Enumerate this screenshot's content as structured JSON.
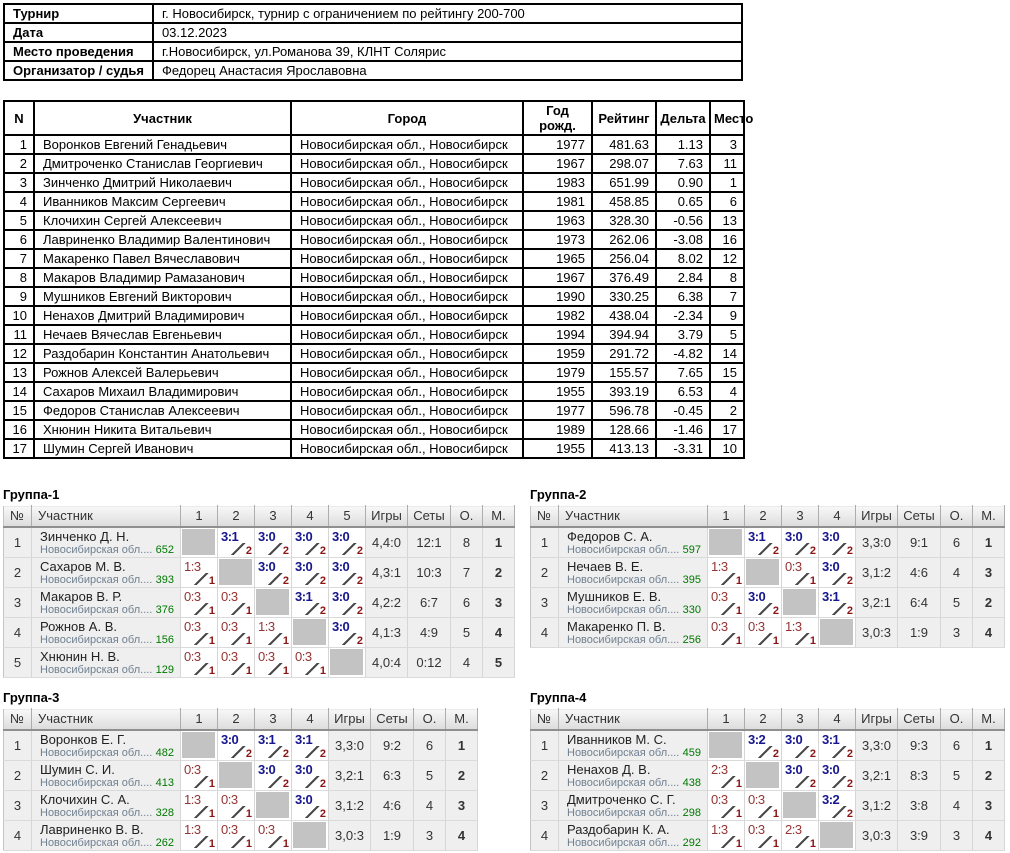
{
  "colors": {
    "win_score": "#16168e",
    "loss_score": "#943434",
    "match_points": "#8b1515",
    "rating_green": "#007800",
    "place_navy": "#22228c",
    "self_cell_gray": "#c3c3c3"
  },
  "info_table": {
    "rows": [
      {
        "label": "Турнир",
        "value": "г. Новосибирск, турнир с ограничением по рейтингу 200-700"
      },
      {
        "label": "Дата",
        "value": "03.12.2023"
      },
      {
        "label": "Место проведения",
        "value": "г.Новосибирск, ул.Романова 39, КЛНТ Солярис"
      },
      {
        "label": "Организатор / судья",
        "value": "Федорец Анастасия Ярославовна"
      }
    ]
  },
  "participants": {
    "headers": [
      "N",
      "Участник",
      "Город",
      "Год рожд.",
      "Рейтинг",
      "Дельта",
      "Место"
    ],
    "rows": [
      [
        "1",
        "Воронков Евгений Генадьевич",
        "Новосибирская обл., Новосибирск",
        "1977",
        "481.63",
        "1.13",
        "3"
      ],
      [
        "2",
        "Дмитроченко Станислав Георгиевич",
        "Новосибирская обл., Новосибирск",
        "1967",
        "298.07",
        "7.63",
        "11"
      ],
      [
        "3",
        "Зинченко Дмитрий Николаевич",
        "Новосибирская обл., Новосибирск",
        "1983",
        "651.99",
        "0.90",
        "1"
      ],
      [
        "4",
        "Иванников Максим Сергеевич",
        "Новосибирская обл., Новосибирск",
        "1981",
        "458.85",
        "0.65",
        "6"
      ],
      [
        "5",
        "Клочихин Сергей Алексеевич",
        "Новосибирская обл., Новосибирск",
        "1963",
        "328.30",
        "-0.56",
        "13"
      ],
      [
        "6",
        "Лавриненко Владимир Валентинович",
        "Новосибирская обл., Новосибирск",
        "1973",
        "262.06",
        "-3.08",
        "16"
      ],
      [
        "7",
        "Макаренко Павел Вячеславович",
        "Новосибирская обл., Новосибирск",
        "1965",
        "256.04",
        "8.02",
        "12"
      ],
      [
        "8",
        "Макаров Владимир Рамазанович",
        "Новосибирская обл., Новосибирск",
        "1967",
        "376.49",
        "2.84",
        "8"
      ],
      [
        "9",
        "Мушников Евгений Викторович",
        "Новосибирская обл., Новосибирск",
        "1990",
        "330.25",
        "6.38",
        "7"
      ],
      [
        "10",
        "Ненахов Дмитрий Владимирович",
        "Новосибирская обл., Новосибирск",
        "1982",
        "438.04",
        "-2.34",
        "9"
      ],
      [
        "11",
        "Нечаев Вячеслав Евгеньевич",
        "Новосибирская обл., Новосибирск",
        "1994",
        "394.94",
        "3.79",
        "5"
      ],
      [
        "12",
        "Раздобарин Константин Анатольевич",
        "Новосибирская обл., Новосибирск",
        "1959",
        "291.72",
        "-4.82",
        "14"
      ],
      [
        "13",
        "Рожнов Алексей Валерьевич",
        "Новосибирская обл., Новосибирск",
        "1979",
        "155.57",
        "7.65",
        "15"
      ],
      [
        "14",
        "Сахаров Михаил Владимирович",
        "Новосибирская обл., Новосибирск",
        "1955",
        "393.19",
        "6.53",
        "4"
      ],
      [
        "15",
        "Федоров Станислав Алексеевич",
        "Новосибирская обл., Новосибирск",
        "1977",
        "596.78",
        "-0.45",
        "2"
      ],
      [
        "16",
        "Хнюнин Никита Витальевич",
        "Новосибирская обл., Новосибирск",
        "1989",
        "128.66",
        "-1.46",
        "17"
      ],
      [
        "17",
        "Шумин Сергей Иванович",
        "Новосибирская обл., Новосибирск",
        "1955",
        "413.13",
        "-3.31",
        "10"
      ]
    ]
  },
  "groups": [
    {
      "title": "Группа-1",
      "headers": [
        "№",
        "Участник",
        "1",
        "2",
        "3",
        "4",
        "5",
        "Игры",
        "Сеты",
        "О.",
        "М."
      ],
      "rows": [
        {
          "num": "1",
          "name": "Зинченко Д. Н.",
          "club": "Новосибирская обл....",
          "rating": "652",
          "cells": [
            {
              "self": true
            },
            {
              "win": true,
              "score": "3:1",
              "pts": "2"
            },
            {
              "win": true,
              "score": "3:0",
              "pts": "2"
            },
            {
              "win": true,
              "score": "3:0",
              "pts": "2"
            },
            {
              "win": true,
              "score": "3:0",
              "pts": "2"
            }
          ],
          "games": "4,4:0",
          "sets": "12:1",
          "points": "8",
          "place": "1"
        },
        {
          "num": "2",
          "name": "Сахаров М. В.",
          "club": "Новосибирская обл....",
          "rating": "393",
          "cells": [
            {
              "win": false,
              "score": "1:3",
              "pts": "1"
            },
            {
              "self": true
            },
            {
              "win": true,
              "score": "3:0",
              "pts": "2"
            },
            {
              "win": true,
              "score": "3:0",
              "pts": "2"
            },
            {
              "win": true,
              "score": "3:0",
              "pts": "2"
            }
          ],
          "games": "4,3:1",
          "sets": "10:3",
          "points": "7",
          "place": "2"
        },
        {
          "num": "3",
          "name": "Макаров В. Р.",
          "club": "Новосибирская обл....",
          "rating": "376",
          "cells": [
            {
              "win": false,
              "score": "0:3",
              "pts": "1"
            },
            {
              "win": false,
              "score": "0:3",
              "pts": "1"
            },
            {
              "self": true
            },
            {
              "win": true,
              "score": "3:1",
              "pts": "2"
            },
            {
              "win": true,
              "score": "3:0",
              "pts": "2"
            }
          ],
          "games": "4,2:2",
          "sets": "6:7",
          "points": "6",
          "place": "3"
        },
        {
          "num": "4",
          "name": "Рожнов А. В.",
          "club": "Новосибирская обл....",
          "rating": "156",
          "cells": [
            {
              "win": false,
              "score": "0:3",
              "pts": "1"
            },
            {
              "win": false,
              "score": "0:3",
              "pts": "1"
            },
            {
              "win": false,
              "score": "1:3",
              "pts": "1"
            },
            {
              "self": true
            },
            {
              "win": true,
              "score": "3:0",
              "pts": "2"
            }
          ],
          "games": "4,1:3",
          "sets": "4:9",
          "points": "5",
          "place": "4"
        },
        {
          "num": "5",
          "name": "Хнюнин Н. В.",
          "club": "Новосибирская обл....",
          "rating": "129",
          "cells": [
            {
              "win": false,
              "score": "0:3",
              "pts": "1"
            },
            {
              "win": false,
              "score": "0:3",
              "pts": "1"
            },
            {
              "win": false,
              "score": "0:3",
              "pts": "1"
            },
            {
              "win": false,
              "score": "0:3",
              "pts": "1"
            },
            {
              "self": true
            }
          ],
          "games": "4,0:4",
          "sets": "0:12",
          "points": "4",
          "place": "5"
        }
      ]
    },
    {
      "title": "Группа-2",
      "headers": [
        "№",
        "Участник",
        "1",
        "2",
        "3",
        "4",
        "Игры",
        "Сеты",
        "О.",
        "М."
      ],
      "rows": [
        {
          "num": "1",
          "name": "Федоров С. А.",
          "club": "Новосибирская обл....",
          "rating": "597",
          "cells": [
            {
              "self": true
            },
            {
              "win": true,
              "score": "3:1",
              "pts": "2"
            },
            {
              "win": true,
              "score": "3:0",
              "pts": "2"
            },
            {
              "win": true,
              "score": "3:0",
              "pts": "2"
            }
          ],
          "games": "3,3:0",
          "sets": "9:1",
          "points": "6",
          "place": "1"
        },
        {
          "num": "2",
          "name": "Нечаев В. Е.",
          "club": "Новосибирская обл....",
          "rating": "395",
          "cells": [
            {
              "win": false,
              "score": "1:3",
              "pts": "1"
            },
            {
              "self": true
            },
            {
              "win": false,
              "score": "0:3",
              "pts": "1"
            },
            {
              "win": true,
              "score": "3:0",
              "pts": "2"
            }
          ],
          "games": "3,1:2",
          "sets": "4:6",
          "points": "4",
          "place": "3"
        },
        {
          "num": "3",
          "name": "Мушников Е. В.",
          "club": "Новосибирская обл....",
          "rating": "330",
          "cells": [
            {
              "win": false,
              "score": "0:3",
              "pts": "1"
            },
            {
              "win": true,
              "score": "3:0",
              "pts": "2"
            },
            {
              "self": true
            },
            {
              "win": true,
              "score": "3:1",
              "pts": "2"
            }
          ],
          "games": "3,2:1",
          "sets": "6:4",
          "points": "5",
          "place": "2"
        },
        {
          "num": "4",
          "name": "Макаренко П. В.",
          "club": "Новосибирская обл....",
          "rating": "256",
          "cells": [
            {
              "win": false,
              "score": "0:3",
              "pts": "1"
            },
            {
              "win": false,
              "score": "0:3",
              "pts": "1"
            },
            {
              "win": false,
              "score": "1:3",
              "pts": "1"
            },
            {
              "self": true
            }
          ],
          "games": "3,0:3",
          "sets": "1:9",
          "points": "3",
          "place": "4"
        }
      ]
    },
    {
      "title": "Группа-3",
      "headers": [
        "№",
        "Участник",
        "1",
        "2",
        "3",
        "4",
        "Игры",
        "Сеты",
        "О.",
        "М."
      ],
      "rows": [
        {
          "num": "1",
          "name": "Воронков Е. Г.",
          "club": "Новосибирская обл....",
          "rating": "482",
          "cells": [
            {
              "self": true
            },
            {
              "win": true,
              "score": "3:0",
              "pts": "2"
            },
            {
              "win": true,
              "score": "3:1",
              "pts": "2"
            },
            {
              "win": true,
              "score": "3:1",
              "pts": "2"
            }
          ],
          "games": "3,3:0",
          "sets": "9:2",
          "points": "6",
          "place": "1"
        },
        {
          "num": "2",
          "name": "Шумин С. И.",
          "club": "Новосибирская обл....",
          "rating": "413",
          "cells": [
            {
              "win": false,
              "score": "0:3",
              "pts": "1"
            },
            {
              "self": true
            },
            {
              "win": true,
              "score": "3:0",
              "pts": "2"
            },
            {
              "win": true,
              "score": "3:0",
              "pts": "2"
            }
          ],
          "games": "3,2:1",
          "sets": "6:3",
          "points": "5",
          "place": "2"
        },
        {
          "num": "3",
          "name": "Клочихин С. А.",
          "club": "Новосибирская обл....",
          "rating": "328",
          "cells": [
            {
              "win": false,
              "score": "1:3",
              "pts": "1"
            },
            {
              "win": false,
              "score": "0:3",
              "pts": "1"
            },
            {
              "self": true
            },
            {
              "win": true,
              "score": "3:0",
              "pts": "2"
            }
          ],
          "games": "3,1:2",
          "sets": "4:6",
          "points": "4",
          "place": "3"
        },
        {
          "num": "4",
          "name": "Лавриненко В. В.",
          "club": "Новосибирская обл....",
          "rating": "262",
          "cells": [
            {
              "win": false,
              "score": "1:3",
              "pts": "1"
            },
            {
              "win": false,
              "score": "0:3",
              "pts": "1"
            },
            {
              "win": false,
              "score": "0:3",
              "pts": "1"
            },
            {
              "self": true
            }
          ],
          "games": "3,0:3",
          "sets": "1:9",
          "points": "3",
          "place": "4"
        }
      ]
    },
    {
      "title": "Группа-4",
      "headers": [
        "№",
        "Участник",
        "1",
        "2",
        "3",
        "4",
        "Игры",
        "Сеты",
        "О.",
        "М."
      ],
      "rows": [
        {
          "num": "1",
          "name": "Иванников М. С.",
          "club": "Новосибирская обл....",
          "rating": "459",
          "cells": [
            {
              "self": true
            },
            {
              "win": true,
              "score": "3:2",
              "pts": "2"
            },
            {
              "win": true,
              "score": "3:0",
              "pts": "2"
            },
            {
              "win": true,
              "score": "3:1",
              "pts": "2"
            }
          ],
          "games": "3,3:0",
          "sets": "9:3",
          "points": "6",
          "place": "1"
        },
        {
          "num": "2",
          "name": "Ненахов Д. В.",
          "club": "Новосибирская обл....",
          "rating": "438",
          "cells": [
            {
              "win": false,
              "score": "2:3",
              "pts": "1"
            },
            {
              "self": true
            },
            {
              "win": true,
              "score": "3:0",
              "pts": "2"
            },
            {
              "win": true,
              "score": "3:0",
              "pts": "2"
            }
          ],
          "games": "3,2:1",
          "sets": "8:3",
          "points": "5",
          "place": "2"
        },
        {
          "num": "3",
          "name": "Дмитроченко С. Г.",
          "club": "Новосибирская обл....",
          "rating": "298",
          "cells": [
            {
              "win": false,
              "score": "0:3",
              "pts": "1"
            },
            {
              "win": false,
              "score": "0:3",
              "pts": "1"
            },
            {
              "self": true
            },
            {
              "win": true,
              "score": "3:2",
              "pts": "2"
            }
          ],
          "games": "3,1:2",
          "sets": "3:8",
          "points": "4",
          "place": "3"
        },
        {
          "num": "4",
          "name": "Раздобарин К. А.",
          "club": "Новосибирская обл....",
          "rating": "292",
          "cells": [
            {
              "win": false,
              "score": "1:3",
              "pts": "1"
            },
            {
              "win": false,
              "score": "0:3",
              "pts": "1"
            },
            {
              "win": false,
              "score": "2:3",
              "pts": "1"
            },
            {
              "self": true
            }
          ],
          "games": "3,0:3",
          "sets": "3:9",
          "points": "3",
          "place": "4"
        }
      ]
    }
  ]
}
